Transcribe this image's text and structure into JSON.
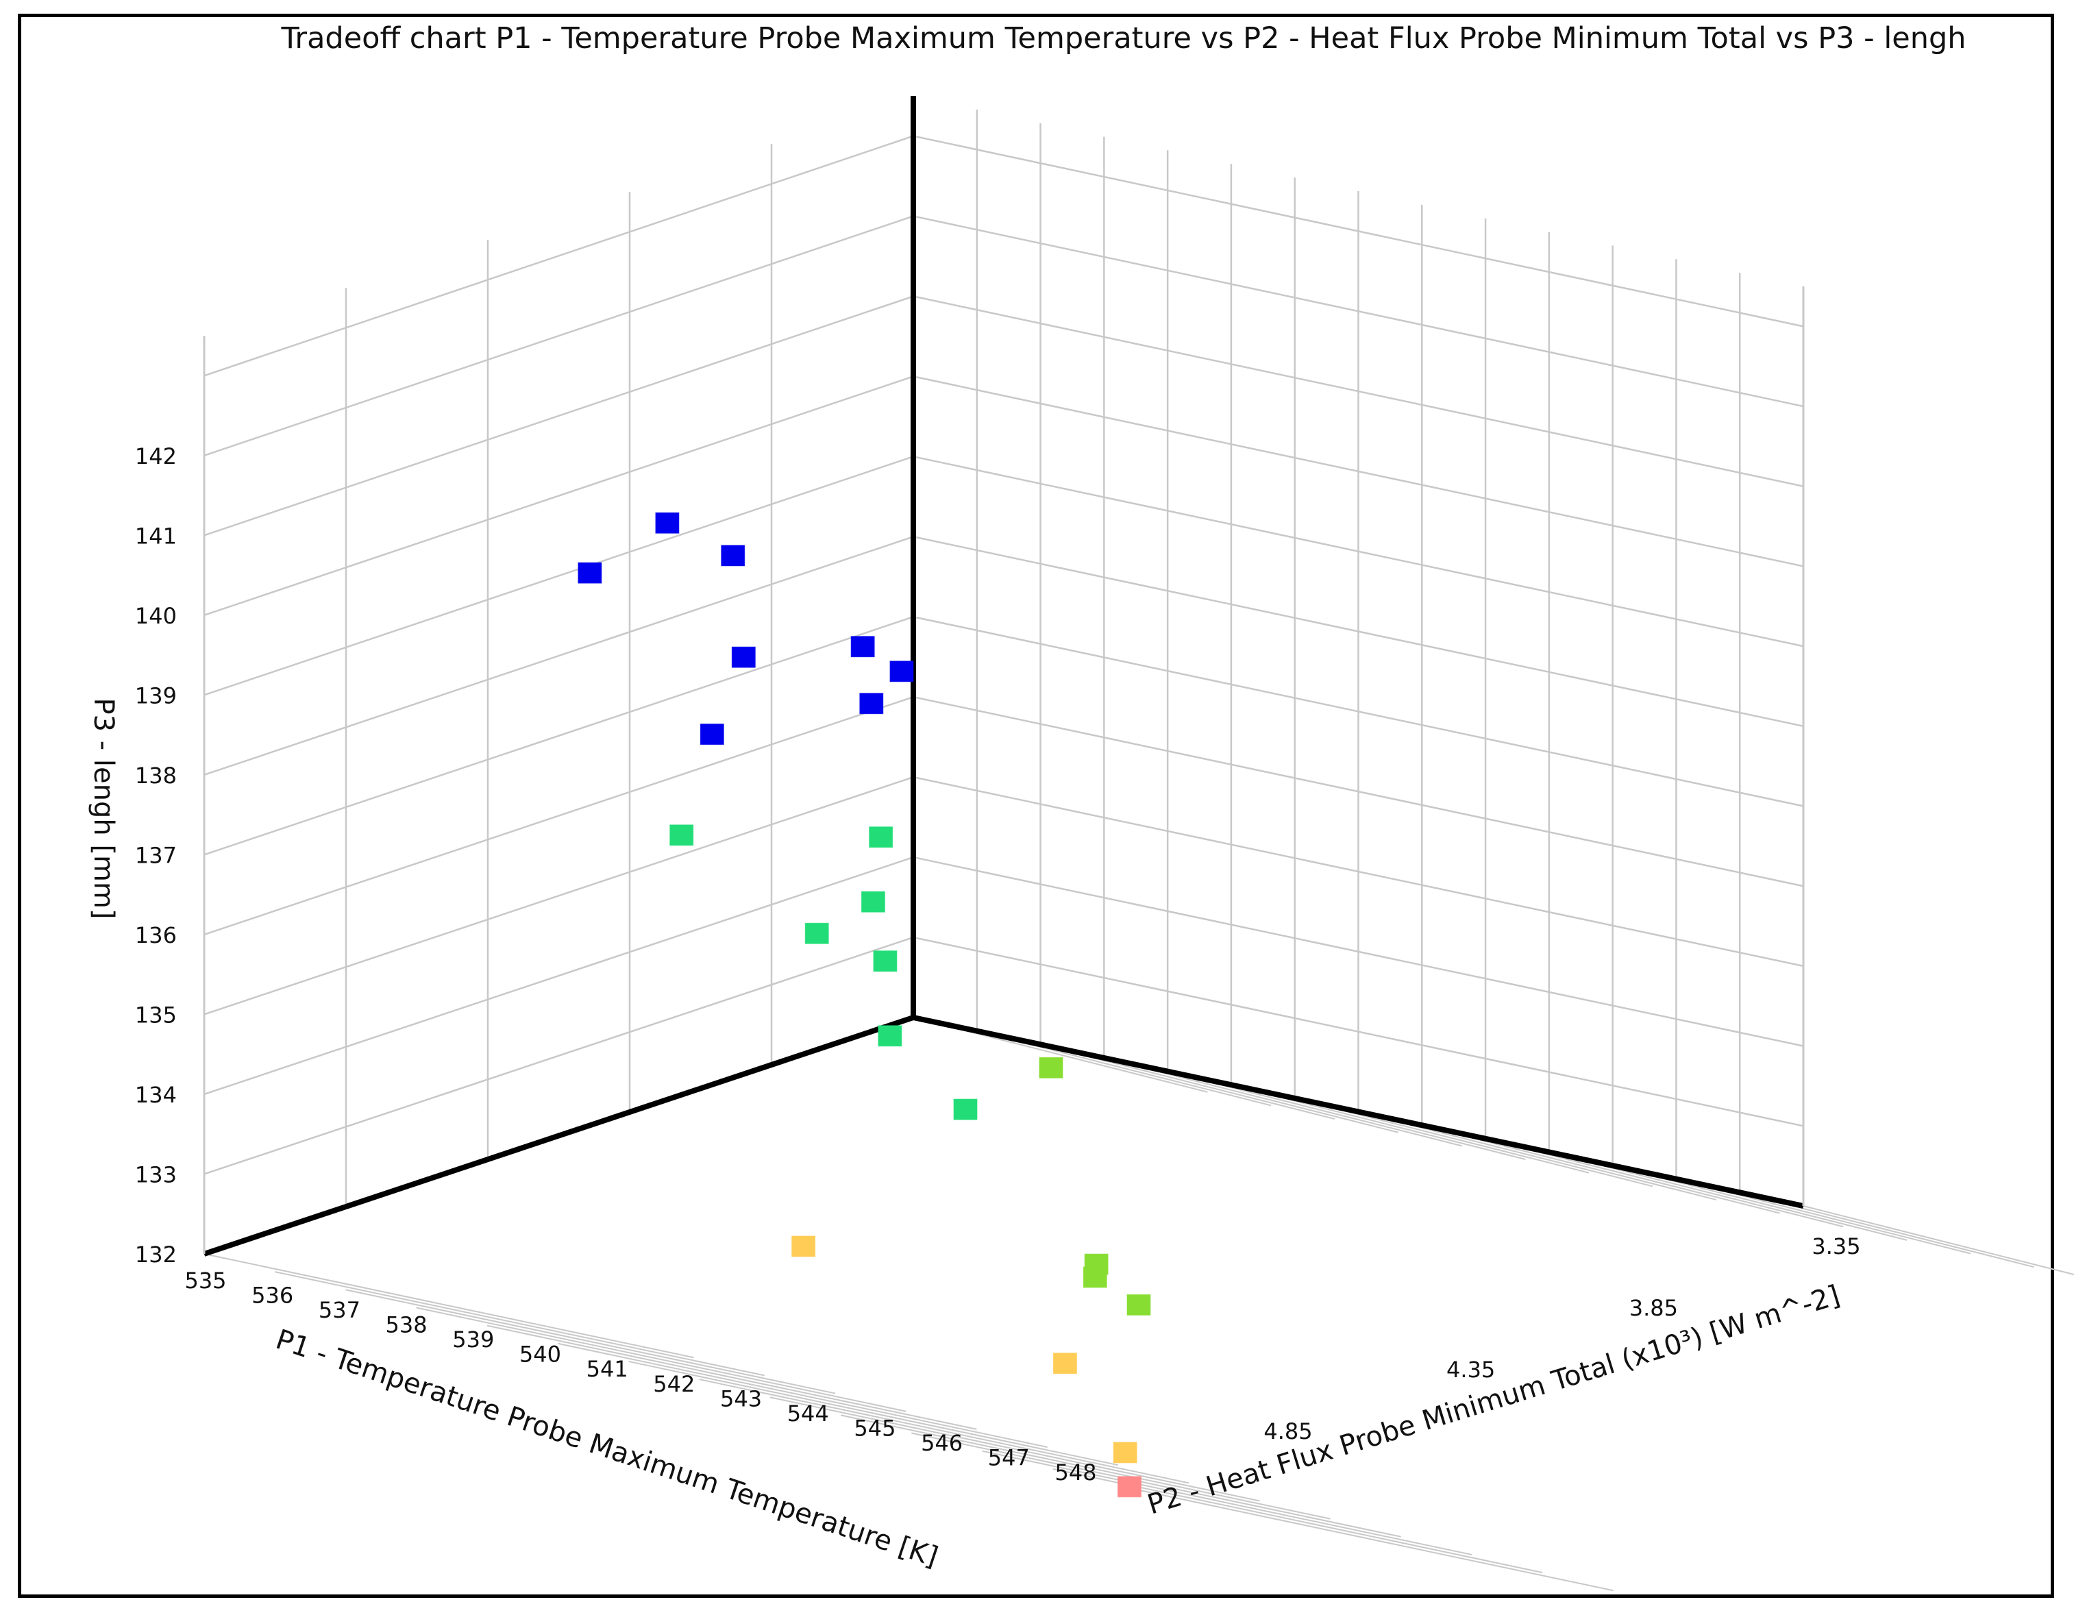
{
  "chart_data": {
    "type": "scatter",
    "projection": "3d",
    "title": "Tradeoff chart P1 - Temperature Probe Maximum Temperature vs P2 - Heat Flux Probe Minimum Total vs P3 - lengh",
    "xlabel": "P1 - Temperature Probe Maximum Temperature  [K]",
    "ylabel": "P2 - Heat Flux Probe Minimum Total  (x10³)  [W m^-2]",
    "zlabel": "P3 - lengh  [mm]",
    "xlim": [
      534.5,
      548.5
    ],
    "ylim": [
      3.2,
      5.1
    ],
    "zlim": [
      132,
      143.5
    ],
    "x_ticks": [
      "535",
      "536",
      "537",
      "538",
      "539",
      "540",
      "541",
      "542",
      "543",
      "544",
      "545",
      "546",
      "547",
      "548"
    ],
    "y_ticks": [
      "3.35",
      "3.85",
      "4.35",
      "4.85"
    ],
    "z_ticks": [
      "132",
      "133",
      "134",
      "135",
      "136",
      "137",
      "138",
      "139",
      "140",
      "141",
      "142"
    ],
    "grid": true,
    "series": [
      {
        "color": "#0000ee",
        "points": [
          {
            "x": 535.0,
            "y": 3.43,
            "z": 142.4
          },
          {
            "x": 536.0,
            "y": 3.43,
            "z": 142.2
          },
          {
            "x": 538.5,
            "y": 3.53,
            "z": 140.8
          },
          {
            "x": 539.0,
            "y": 3.54,
            "z": 141.3
          },
          {
            "x": 535.8,
            "y": 3.46,
            "z": 139.9
          },
          {
            "x": 537.3,
            "y": 3.72,
            "z": 141.0
          },
          {
            "x": 538.8,
            "y": 3.64,
            "z": 141.5
          },
          {
            "x": 535.9,
            "y": 3.96,
            "z": 141.6
          }
        ]
      },
      {
        "color": "#22dd77",
        "points": [
          {
            "x": 537.1,
            "y": 3.91,
            "z": 138.6
          },
          {
            "x": 537.9,
            "y": 3.37,
            "z": 138.3
          },
          {
            "x": 539.9,
            "y": 3.85,
            "z": 139.2
          },
          {
            "x": 538.2,
            "y": 3.4,
            "z": 137.6
          },
          {
            "x": 539.2,
            "y": 3.92,
            "z": 137.8
          },
          {
            "x": 538.9,
            "y": 3.56,
            "z": 136.7
          },
          {
            "x": 539.5,
            "y": 3.42,
            "z": 136.0
          }
        ]
      },
      {
        "color": "#88dd33",
        "points": [
          {
            "x": 541.0,
            "y": 3.47,
            "z": 136.8
          },
          {
            "x": 542.2,
            "y": 3.6,
            "z": 134.5
          },
          {
            "x": 541.2,
            "y": 3.35,
            "z": 134.3
          },
          {
            "x": 542.1,
            "y": 3.41,
            "z": 134.1
          }
        ]
      },
      {
        "color": "#ffcc55",
        "points": [
          {
            "x": 540.8,
            "y": 4.38,
            "z": 133.9
          },
          {
            "x": 542.9,
            "y": 3.9,
            "z": 133.2
          },
          {
            "x": 544.6,
            "y": 4.1,
            "z": 132.3
          }
        ]
      },
      {
        "color": "#ff8888",
        "points": [
          {
            "x": 548.0,
            "y": 4.95,
            "z": 132.0
          }
        ]
      }
    ]
  }
}
